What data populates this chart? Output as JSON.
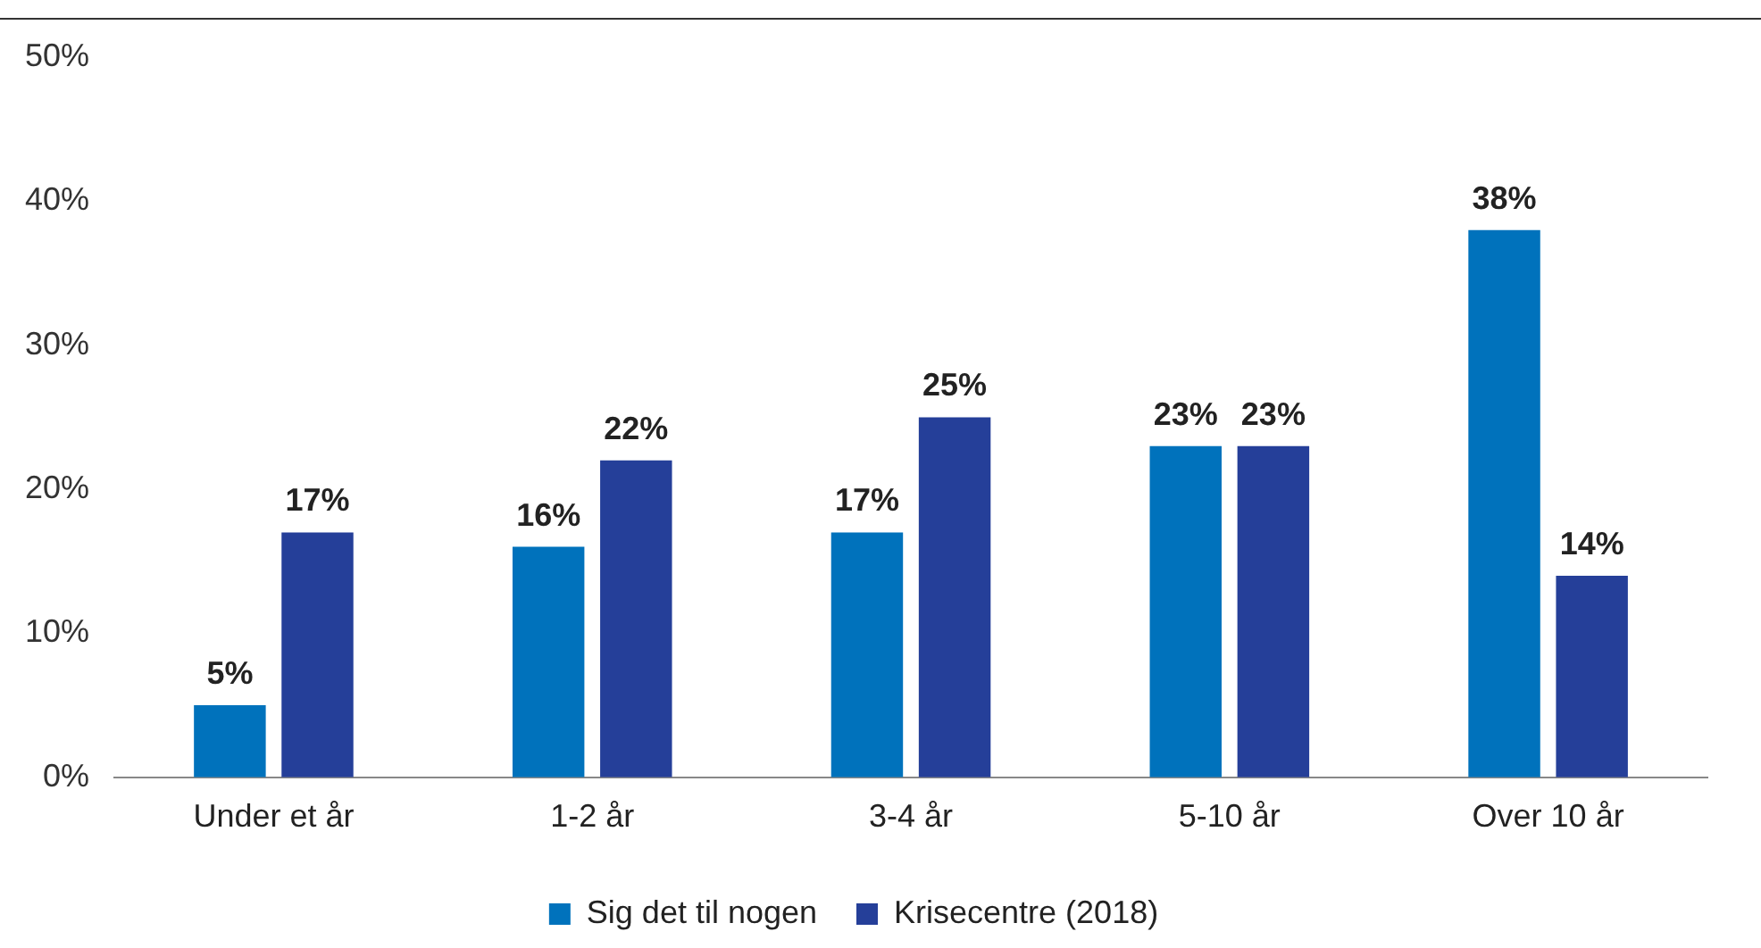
{
  "chart_data": {
    "type": "bar",
    "categories": [
      "Under et år",
      "1-2 år",
      "3-4 år",
      "5-10 år",
      "Over 10 år"
    ],
    "series": [
      {
        "name": "Sig det til nogen",
        "color": "#0072bc",
        "values": [
          5,
          16,
          17,
          23,
          38
        ],
        "value_labels": [
          "5%",
          "16%",
          "17%",
          "23%",
          "38%"
        ]
      },
      {
        "name": "Krisecentre (2018)",
        "color": "#253f99",
        "values": [
          17,
          22,
          25,
          23,
          14
        ],
        "value_labels": [
          "17%",
          "22%",
          "25%",
          "23%",
          "14%"
        ]
      }
    ],
    "ylim": [
      0,
      50
    ],
    "yticks": [
      {
        "value": 0,
        "label": "0%"
      },
      {
        "value": 10,
        "label": "10%"
      },
      {
        "value": 20,
        "label": "20%"
      },
      {
        "value": 30,
        "label": "30%"
      },
      {
        "value": 40,
        "label": "40%"
      },
      {
        "value": 50,
        "label": "50%"
      }
    ],
    "grid": false,
    "legend": "bottom"
  }
}
